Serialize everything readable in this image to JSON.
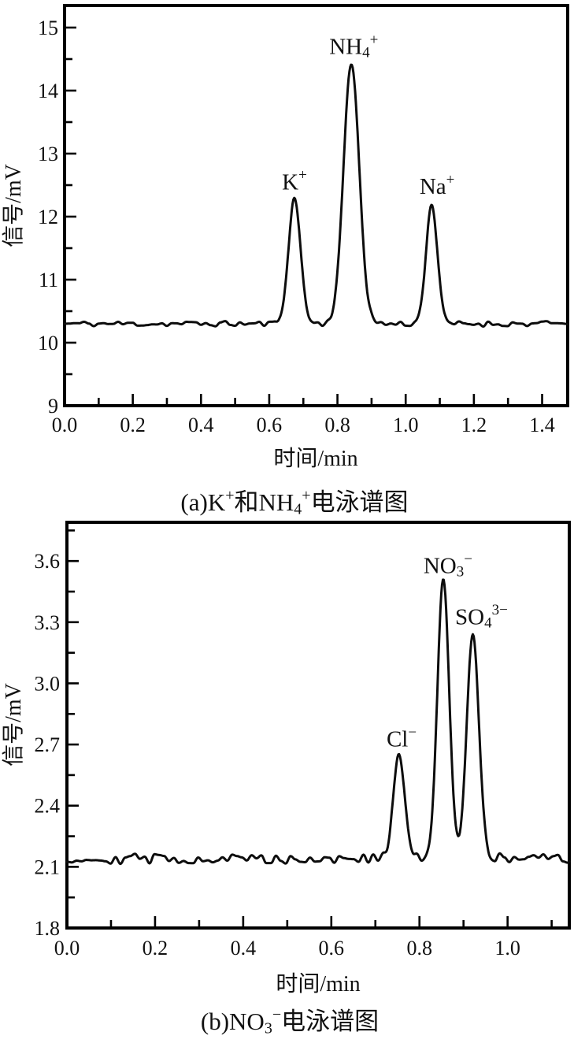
{
  "page": {
    "background": "#ffffff",
    "ink": "#111111",
    "trace_color": "#0d0d0d"
  },
  "chart_data": [
    {
      "id": "a",
      "type": "line",
      "caption_segments": [
        {
          "t": "(a)K"
        },
        {
          "t": "+",
          "sup": true
        },
        {
          "t": "和NH"
        },
        {
          "t": "4",
          "sub": true
        },
        {
          "t": "+",
          "sup": true
        },
        {
          "t": "电泳谱图"
        }
      ],
      "xlabel": "时间/min",
      "ylabel": "信号/mV",
      "xlim": [
        0,
        1.475
      ],
      "ylim": [
        9,
        15.35
      ],
      "xticks": [
        0,
        0.2,
        0.4,
        0.6,
        0.8,
        1.0,
        1.2,
        1.4
      ],
      "xtick_labels": [
        "0.0",
        "0.2",
        "0.4",
        "0.6",
        "0.8",
        "1.0",
        "1.2",
        "1.4"
      ],
      "yticks": [
        9,
        10,
        11,
        12,
        13,
        14,
        15
      ],
      "ytick_labels": [
        "9",
        "10",
        "11",
        "12",
        "13",
        "14",
        "15"
      ],
      "x_minor_step": 0.1,
      "y_minor_step": 0.5,
      "grid": false,
      "legend": "none",
      "baseline_mV": 10.3,
      "noise_mV": 0.045,
      "peaks": [
        {
          "label_segments": [
            {
              "t": "K"
            },
            {
              "t": "+",
              "sup": true
            }
          ],
          "time_min": 0.674,
          "apex_mV": 12.27,
          "sigma_min": 0.018
        },
        {
          "label_segments": [
            {
              "t": "NH"
            },
            {
              "t": "4",
              "sub": true
            },
            {
              "t": "+",
              "sup": true
            }
          ],
          "time_min": 0.841,
          "apex_mV": 14.42,
          "sigma_min": 0.023
        },
        {
          "label_segments": [
            {
              "t": "Na"
            },
            {
              "t": "+",
              "sup": true
            }
          ],
          "time_min": 1.076,
          "apex_mV": 12.2,
          "sigma_min": 0.0165
        }
      ]
    },
    {
      "id": "b",
      "type": "line",
      "caption_segments": [
        {
          "t": "(b)NO"
        },
        {
          "t": "3",
          "sub": true
        },
        {
          "t": "−",
          "sup": true
        },
        {
          "t": "电泳谱图"
        }
      ],
      "xlabel": "时间/min",
      "ylabel": "信号/mV",
      "xlim": [
        0,
        1.14
      ],
      "ylim": [
        1.8,
        3.79
      ],
      "xticks": [
        0,
        0.2,
        0.4,
        0.6,
        0.8,
        1.0
      ],
      "xtick_labels": [
        "0.0",
        "0.2",
        "0.4",
        "0.6",
        "0.8",
        "1.0"
      ],
      "yticks": [
        1.8,
        2.1,
        2.4,
        2.7,
        3.0,
        3.3,
        3.6
      ],
      "ytick_labels": [
        "1.8",
        "2.1",
        "2.4",
        "2.7",
        "3.0",
        "3.3",
        "3.6"
      ],
      "x_minor_step": 0.1,
      "y_minor_step": 0.15,
      "grid": false,
      "legend": "none",
      "baseline_mV": 2.14,
      "noise_mV": 0.026,
      "peaks": [
        {
          "label_segments": [
            {
              "t": "Cl"
            },
            {
              "t": "−",
              "sup": true
            }
          ],
          "time_min": 0.754,
          "apex_mV": 2.64,
          "sigma_min": 0.013
        },
        {
          "label_segments": [
            {
              "t": "NO"
            },
            {
              "t": "3",
              "sub": true
            },
            {
              "t": "−",
              "sup": true
            }
          ],
          "time_min": 0.854,
          "apex_mV": 3.49,
          "sigma_min": 0.0135
        },
        {
          "label_segments": [
            {
              "t": "SO"
            },
            {
              "t": "4",
              "sub": true
            },
            {
              "t": "3−",
              "sup": true
            }
          ],
          "time_min": 0.921,
          "apex_mV": 3.24,
          "sigma_min": 0.014
        }
      ]
    }
  ]
}
